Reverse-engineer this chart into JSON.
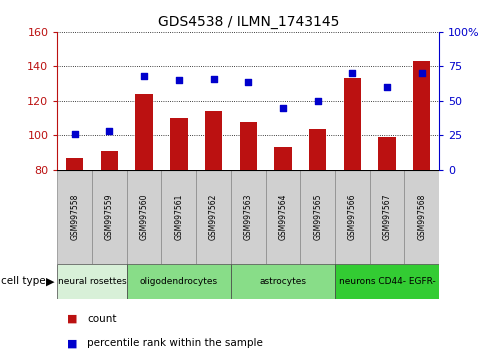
{
  "title": "GDS4538 / ILMN_1743145",
  "samples": [
    "GSM997558",
    "GSM997559",
    "GSM997560",
    "GSM997561",
    "GSM997562",
    "GSM997563",
    "GSM997564",
    "GSM997565",
    "GSM997566",
    "GSM997567",
    "GSM997568"
  ],
  "counts": [
    87,
    91,
    124,
    110,
    114,
    108,
    93,
    104,
    133,
    99,
    143
  ],
  "percentile_ranks": [
    26,
    28,
    68,
    65,
    66,
    64,
    45,
    50,
    70,
    60,
    70
  ],
  "cell_types": [
    {
      "label": "neural rosettes",
      "start": 0,
      "end": 1,
      "color": "#d8f0d8"
    },
    {
      "label": "oligodendrocytes",
      "start": 2,
      "end": 4,
      "color": "#88dd88"
    },
    {
      "label": "astrocytes",
      "start": 5,
      "end": 7,
      "color": "#88dd88"
    },
    {
      "label": "neurons CD44- EGFR-",
      "start": 8,
      "end": 10,
      "color": "#33cc33"
    }
  ],
  "ylim_left": [
    80,
    160
  ],
  "ylim_right": [
    0,
    100
  ],
  "yticks_left": [
    80,
    100,
    120,
    140,
    160
  ],
  "yticks_right": [
    0,
    25,
    50,
    75,
    100
  ],
  "bar_color": "#bb1111",
  "dot_color": "#0000cc",
  "legend_items": [
    "count",
    "percentile rank within the sample"
  ]
}
